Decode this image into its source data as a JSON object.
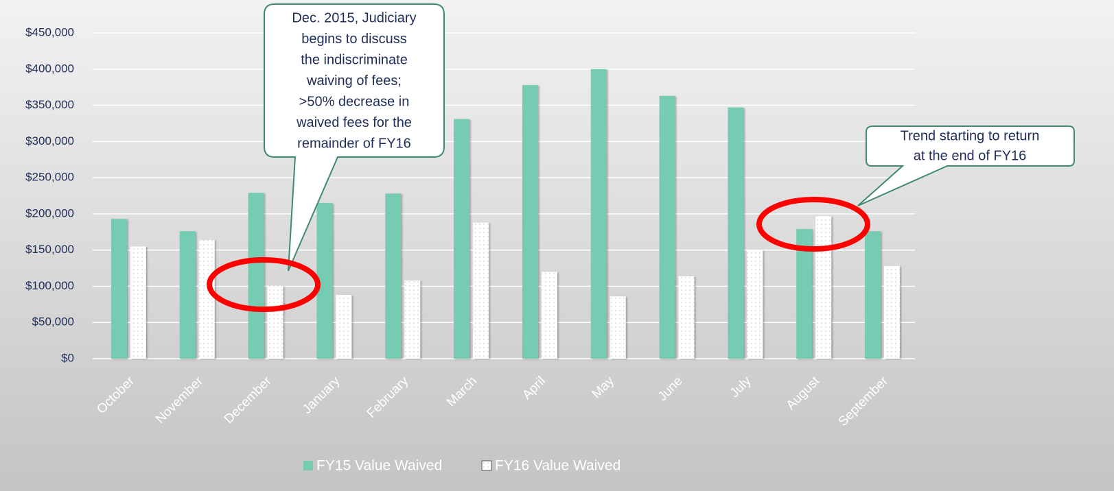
{
  "chart_data": {
    "type": "bar",
    "categories": [
      "October",
      "November",
      "December",
      "January",
      "February",
      "March",
      "April",
      "May",
      "June",
      "July",
      "August",
      "September"
    ],
    "series": [
      {
        "name": "FY15 Value Waived",
        "color": "#76cbb3",
        "values": [
          193000,
          176000,
          229000,
          215000,
          228000,
          331000,
          378000,
          400000,
          363000,
          347000,
          179000,
          176000
        ]
      },
      {
        "name": "FY16 Value Waived",
        "color": "#ffffff",
        "values": [
          155000,
          164000,
          101000,
          88000,
          108000,
          188000,
          120000,
          86000,
          114000,
          150000,
          197000,
          128000
        ]
      }
    ],
    "ylim": [
      0,
      450000
    ],
    "yticks": [
      {
        "value": 0,
        "label": "$0"
      },
      {
        "value": 50000,
        "label": "$50,000"
      },
      {
        "value": 100000,
        "label": "$100,000"
      },
      {
        "value": 150000,
        "label": "$150,000"
      },
      {
        "value": 200000,
        "label": "$200,000"
      },
      {
        "value": 250000,
        "label": "$250,000"
      },
      {
        "value": 300000,
        "label": "$300,000"
      },
      {
        "value": 350000,
        "label": "$350,000"
      },
      {
        "value": 400000,
        "label": "$400,000"
      },
      {
        "value": 450000,
        "label": "$450,000"
      }
    ],
    "grid": true,
    "legend": "bottom",
    "annotations": [
      {
        "lines": [
          "Dec. 2015, Judiciary",
          "begins to discuss",
          "the indiscriminate",
          "waiving of fees;",
          ">50% decrease in",
          "waived fees for the",
          "remainder of FY16"
        ]
      },
      {
        "lines": [
          "Trend starting to return",
          "at the end of FY16"
        ]
      }
    ]
  }
}
